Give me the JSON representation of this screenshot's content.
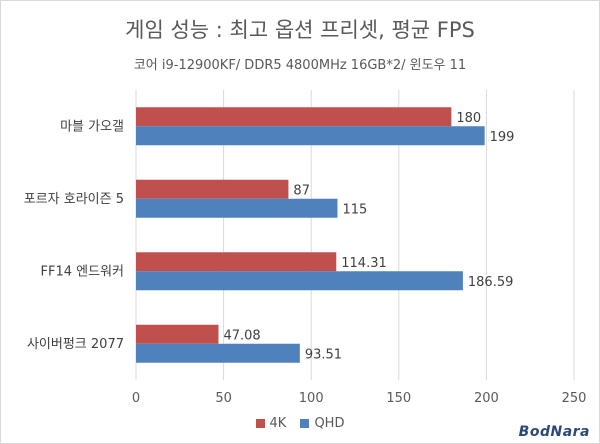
{
  "chart_data": {
    "type": "bar",
    "orientation": "horizontal",
    "title": "게임 성능 : 최고 옵션 프리셋, 평균 FPS",
    "subtitle": "코어 i9-12900KF/ DDR5 4800MHz 16GB*2/ 윈도우 11",
    "categories": [
      "마블 가오갤",
      "포르자 호라이즌 5",
      "FF14 엔드워커",
      "사이버펑크 2077"
    ],
    "series": [
      {
        "name": "4K",
        "color": "#c0504d",
        "values": [
          180,
          87,
          114.31,
          47.08
        ],
        "labels": [
          "180",
          "87",
          "114.31",
          "47.08"
        ]
      },
      {
        "name": "QHD",
        "color": "#4f81bd",
        "values": [
          199,
          115,
          186.59,
          93.51
        ],
        "labels": [
          "199",
          "115",
          "186.59",
          "93.51"
        ]
      }
    ],
    "xlim": [
      0,
      250
    ],
    "xticks": [
      0,
      50,
      100,
      150,
      200,
      250
    ],
    "xtick_labels": [
      "0",
      "50",
      "100",
      "150",
      "200",
      "250"
    ],
    "grid": true,
    "legend_position": "bottom"
  },
  "watermark": "BodNara"
}
